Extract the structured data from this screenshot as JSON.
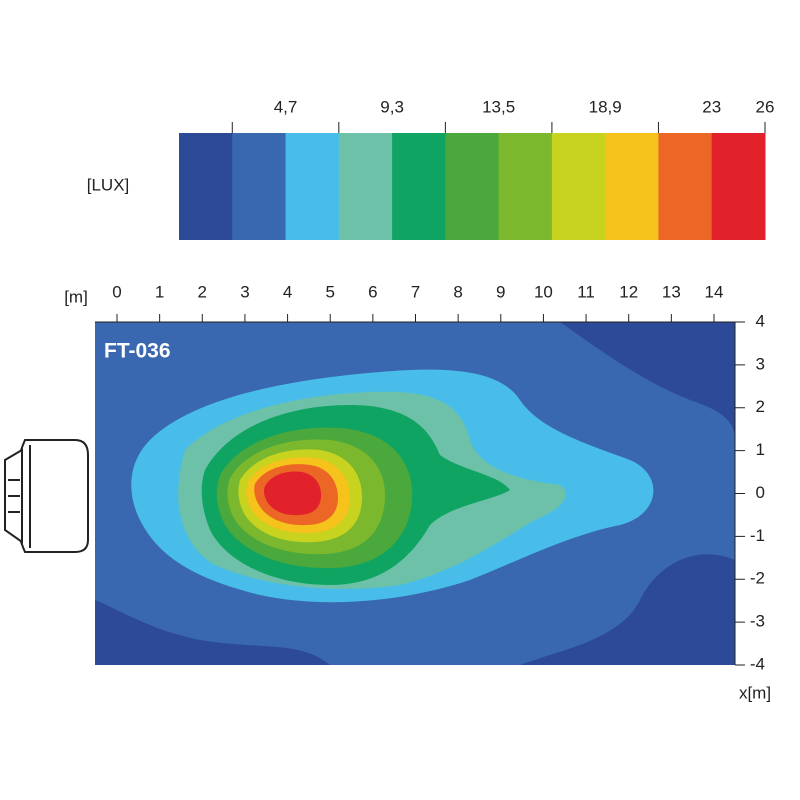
{
  "legend": {
    "unit": "[LUX]",
    "labels": [
      "4,7",
      "9,3",
      "13,5",
      "18,9",
      "23",
      "26"
    ],
    "colors": [
      "#2c4a98",
      "#3a68b0",
      "#49bde9",
      "#6dc1a9",
      "#10a463",
      "#4aa83c",
      "#7bb82e",
      "#c7d31f",
      "#f6c21c",
      "#ec6625",
      "#e1222a"
    ]
  },
  "axes": {
    "x_unit": "[m]",
    "x_ticks": [
      0,
      1,
      2,
      3,
      4,
      5,
      6,
      7,
      8,
      9,
      10,
      11,
      12,
      13,
      14
    ],
    "y_ticks": [
      4,
      3,
      2,
      1,
      0,
      -1,
      -2,
      -3,
      -4
    ],
    "y_unit": "x[m]"
  },
  "plot": {
    "title": "FT-036"
  }
}
